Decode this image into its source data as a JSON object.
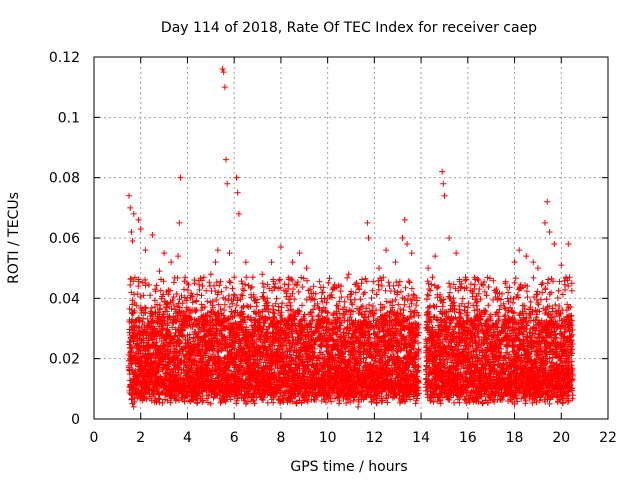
{
  "chart_data": {
    "type": "scatter",
    "title": "Day 114 of 2018, Rate Of TEC Index for receiver caep",
    "xlabel": "GPS time / hours",
    "ylabel": "ROTI / TECUs",
    "xlim": [
      0,
      22
    ],
    "ylim": [
      0,
      0.12
    ],
    "xticks": [
      0,
      2,
      4,
      6,
      8,
      10,
      12,
      14,
      16,
      18,
      20,
      22
    ],
    "yticks": [
      0,
      0.02,
      0.04,
      0.06,
      0.08,
      0.1,
      0.12
    ],
    "ytick_labels": [
      "0",
      "0.02",
      "0.04",
      "0.06",
      "0.08",
      "0.1",
      "0.12"
    ],
    "grid": true,
    "marker": "+",
    "color": "#ff0000",
    "coverage": [
      {
        "x_start": 1.5,
        "x_end": 13.9
      },
      {
        "x_start": 14.2,
        "x_end": 20.5
      }
    ],
    "band": {
      "typical_low": 0.008,
      "typical_high": 0.035
    },
    "series": [
      {
        "name": "ROTI",
        "points": [
          [
            1.5,
            0.074
          ],
          [
            1.55,
            0.07
          ],
          [
            1.6,
            0.062
          ],
          [
            1.65,
            0.059
          ],
          [
            1.7,
            0.068
          ],
          [
            1.9,
            0.066
          ],
          [
            2.0,
            0.063
          ],
          [
            2.2,
            0.056
          ],
          [
            2.5,
            0.061
          ],
          [
            2.8,
            0.049
          ],
          [
            3.0,
            0.055
          ],
          [
            3.3,
            0.052
          ],
          [
            3.6,
            0.054
          ],
          [
            3.65,
            0.065
          ],
          [
            3.7,
            0.08
          ],
          [
            3.9,
            0.047
          ],
          [
            4.3,
            0.045
          ],
          [
            4.6,
            0.041
          ],
          [
            5.0,
            0.048
          ],
          [
            5.2,
            0.052
          ],
          [
            5.3,
            0.056
          ],
          [
            5.5,
            0.116
          ],
          [
            5.55,
            0.115
          ],
          [
            5.6,
            0.11
          ],
          [
            5.65,
            0.086
          ],
          [
            5.7,
            0.078
          ],
          [
            5.8,
            0.055
          ],
          [
            6.0,
            0.047
          ],
          [
            6.1,
            0.08
          ],
          [
            6.15,
            0.075
          ],
          [
            6.2,
            0.068
          ],
          [
            6.5,
            0.052
          ],
          [
            6.8,
            0.047
          ],
          [
            7.2,
            0.048
          ],
          [
            7.6,
            0.052
          ],
          [
            8.0,
            0.057
          ],
          [
            8.5,
            0.052
          ],
          [
            8.8,
            0.055
          ],
          [
            9.1,
            0.05
          ],
          [
            9.4,
            0.044
          ],
          [
            9.8,
            0.042
          ],
          [
            10.1,
            0.041
          ],
          [
            10.5,
            0.039
          ],
          [
            10.9,
            0.048
          ],
          [
            11.3,
            0.044
          ],
          [
            11.7,
            0.065
          ],
          [
            11.75,
            0.06
          ],
          [
            12.2,
            0.05
          ],
          [
            12.5,
            0.056
          ],
          [
            12.9,
            0.052
          ],
          [
            13.2,
            0.06
          ],
          [
            13.3,
            0.066
          ],
          [
            13.4,
            0.058
          ],
          [
            13.6,
            0.055
          ],
          [
            14.3,
            0.05
          ],
          [
            14.6,
            0.054
          ],
          [
            14.9,
            0.082
          ],
          [
            14.95,
            0.078
          ],
          [
            15.0,
            0.074
          ],
          [
            15.2,
            0.06
          ],
          [
            15.5,
            0.055
          ],
          [
            15.9,
            0.047
          ],
          [
            16.4,
            0.039
          ],
          [
            16.8,
            0.041
          ],
          [
            17.2,
            0.042
          ],
          [
            17.6,
            0.045
          ],
          [
            18.0,
            0.052
          ],
          [
            18.2,
            0.056
          ],
          [
            18.5,
            0.054
          ],
          [
            18.8,
            0.052
          ],
          [
            19.0,
            0.05
          ],
          [
            19.3,
            0.065
          ],
          [
            19.4,
            0.072
          ],
          [
            19.5,
            0.062
          ],
          [
            19.7,
            0.058
          ],
          [
            20.0,
            0.051
          ],
          [
            20.2,
            0.047
          ],
          [
            20.3,
            0.058
          ],
          [
            20.45,
            0.045
          ],
          [
            1.7,
            0.004
          ],
          [
            3.5,
            0.006
          ],
          [
            5.0,
            0.005
          ],
          [
            6.5,
            0.005
          ],
          [
            8.0,
            0.006
          ],
          [
            9.0,
            0.006
          ],
          [
            11.3,
            0.004
          ],
          [
            12.5,
            0.007
          ],
          [
            14.4,
            0.006
          ],
          [
            16.2,
            0.007
          ],
          [
            18.0,
            0.005
          ],
          [
            19.5,
            0.005
          ],
          [
            20.3,
            0.008
          ]
        ]
      }
    ]
  }
}
